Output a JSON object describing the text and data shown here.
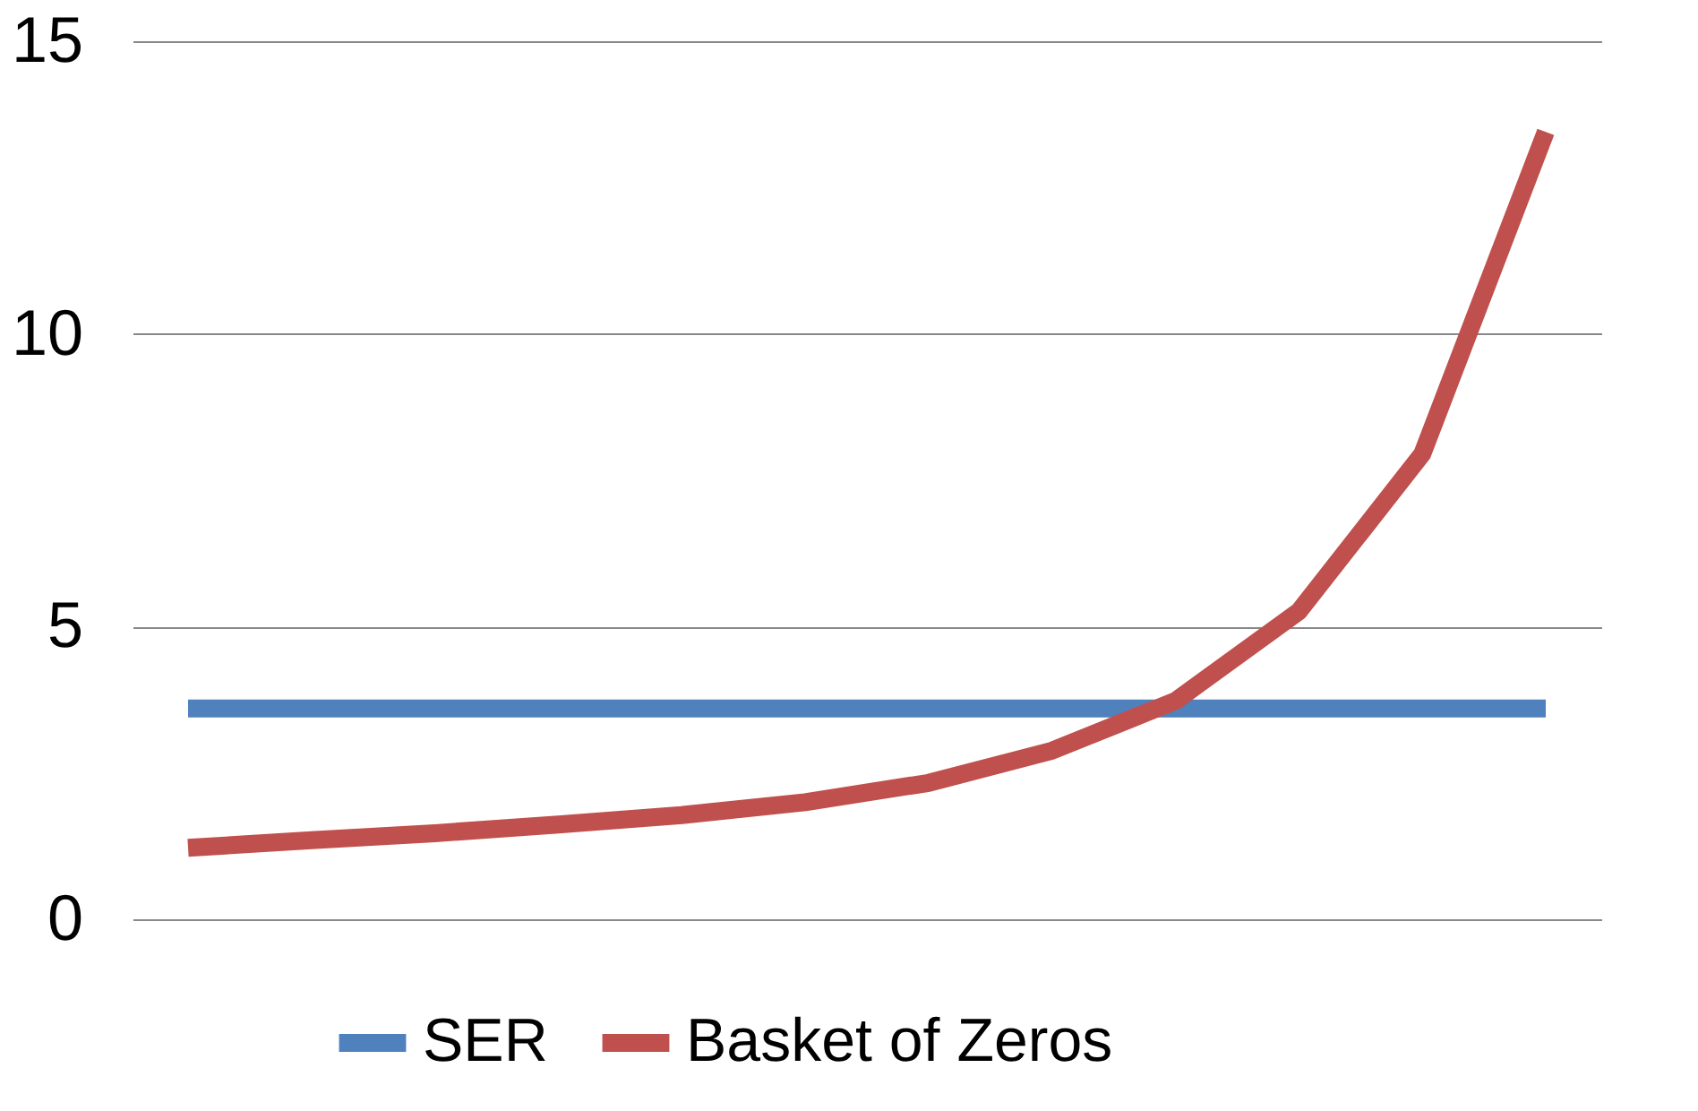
{
  "chart_data": {
    "type": "line",
    "categories": [
      null,
      null,
      null,
      null,
      null,
      null,
      null,
      null,
      null,
      null,
      null,
      null
    ],
    "series": [
      {
        "name": "SER",
        "color": "#4f81bd",
        "values": [
          3.6,
          3.6,
          3.6,
          3.6,
          3.6,
          3.6,
          3.6,
          3.6,
          3.6,
          3.6,
          3.6,
          3.6
        ]
      },
      {
        "name": "Basket of Zeros",
        "color": "#c0504d",
        "values": [
          1.22,
          1.35,
          1.47,
          1.62,
          1.78,
          2.0,
          2.33,
          2.88,
          3.73,
          5.26,
          7.95,
          13.45
        ]
      }
    ],
    "ylim": [
      0,
      15
    ],
    "yticks": [
      0,
      5,
      10,
      15
    ],
    "grid": "y",
    "legend": "bottom",
    "tick_labels": "y",
    "marker": "none",
    "line_style": "solid"
  }
}
